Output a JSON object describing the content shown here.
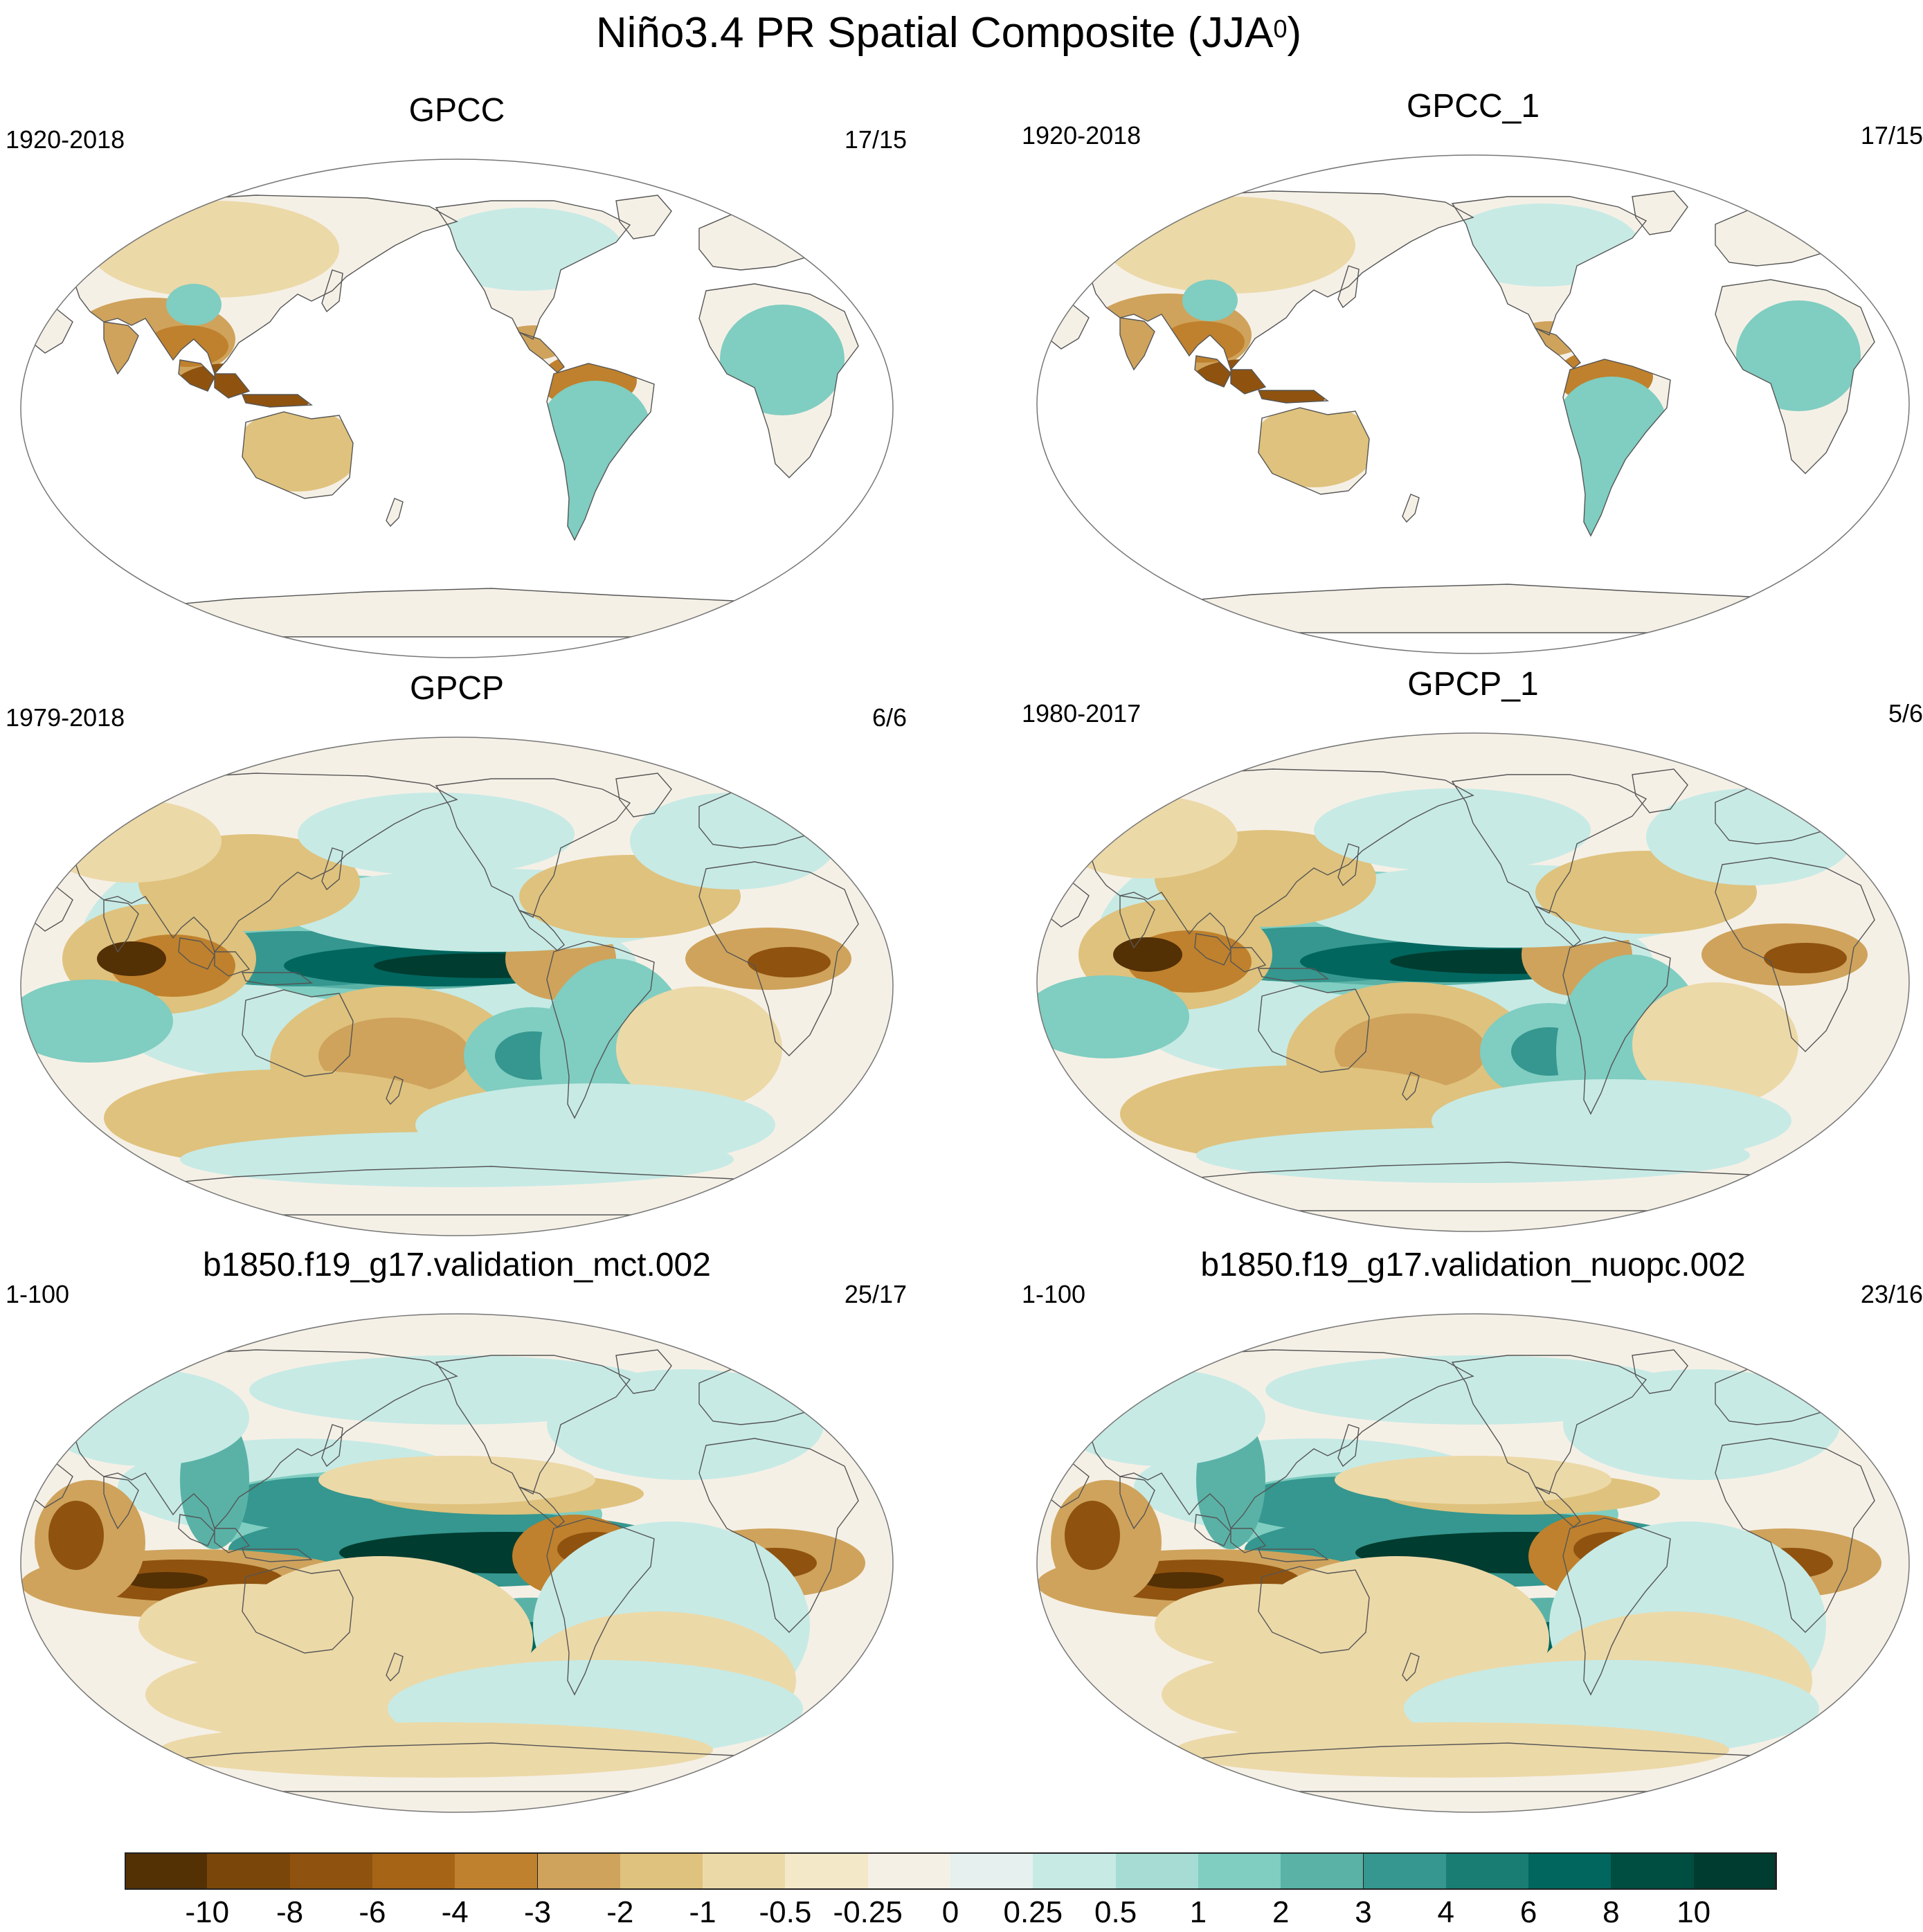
{
  "title": {
    "main": "Niño3.4 PR Spatial Composite (JJA",
    "superscript": "0",
    "close": ")"
  },
  "panels": [
    {
      "name": "GPCC",
      "years": "1920-2018",
      "count": "17/15",
      "style": "land"
    },
    {
      "name": "GPCC_1",
      "years": "1920-2018",
      "count": "17/15",
      "style": "land"
    },
    {
      "name": "GPCP",
      "years": "1979-2018",
      "count": "6/6",
      "style": "obs"
    },
    {
      "name": "GPCP_1",
      "years": "1980-2017",
      "count": "5/6",
      "style": "obs"
    },
    {
      "name": "b1850.f19_g17.validation_mct.002",
      "years": "1-100",
      "count": "25/17",
      "style": "model"
    },
    {
      "name": "b1850.f19_g17.validation_nuopc.002",
      "years": "1-100",
      "count": "23/16",
      "style": "model"
    }
  ],
  "colorbar": {
    "colors": [
      "#543005",
      "#7a4609",
      "#8f530f",
      "#a66417",
      "#bf812d",
      "#cfa35c",
      "#dfc27d",
      "#ecd9a8",
      "#f3e9c8",
      "#f5f0e6",
      "#e5f0ef",
      "#c7eae5",
      "#a6dcd3",
      "#80cdc1",
      "#5ab2a7",
      "#35978f",
      "#1a7d73",
      "#01665e",
      "#004d41",
      "#003c30"
    ],
    "labels": [
      "-10",
      "-8",
      "-6",
      "-4",
      "-3",
      "-2",
      "-1",
      "-0.5",
      "-0.25",
      "0",
      "0.25",
      "0.5",
      "1",
      "2",
      "3",
      "4",
      "6",
      "8",
      "10"
    ]
  }
}
